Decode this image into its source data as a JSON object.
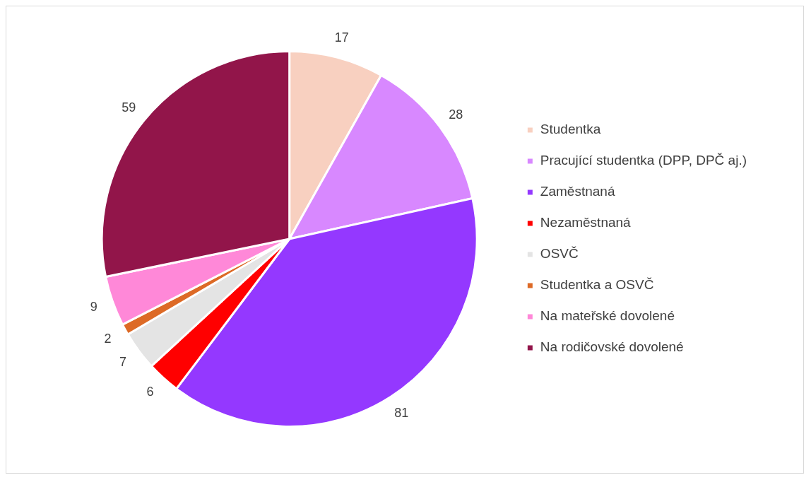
{
  "chart_data": {
    "type": "pie",
    "categories": [
      "Studentka",
      "Pracující studentka (DPP, DPČ aj.)",
      "Zaměstnaná",
      "Nezaměstnaná",
      "OSVČ",
      "Studentka a OSVČ",
      "Na mateřské dovolené",
      "Na rodičovské dovolené"
    ],
    "values": [
      17,
      28,
      81,
      6,
      7,
      2,
      9,
      59
    ],
    "colors": [
      "#f8d0c0",
      "#d888ff",
      "#9438ff",
      "#ff0000",
      "#e4e4e4",
      "#dd6a26",
      "#ff88d8",
      "#92154a"
    ],
    "data_labels": true,
    "legend": "right"
  }
}
